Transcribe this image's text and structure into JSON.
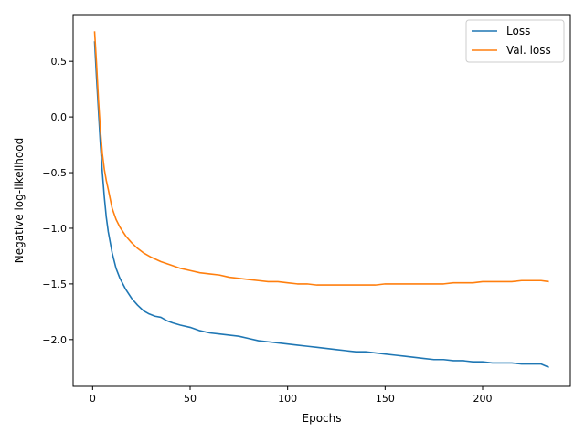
{
  "chart_data": {
    "type": "line",
    "title": "",
    "xlabel": "Epochs",
    "ylabel": "Negative log-likelihood",
    "xlim": [
      -10,
      245
    ],
    "ylim": [
      -2.42,
      0.92
    ],
    "xticks": [
      0,
      50,
      100,
      150,
      200
    ],
    "xtick_labels": [
      "0",
      "50",
      "100",
      "150",
      "200"
    ],
    "yticks": [
      0.5,
      0.0,
      -0.5,
      -1.0,
      -1.5,
      -2.0
    ],
    "ytick_labels": [
      "0.5",
      "0.0",
      "−0.5",
      "−1.0",
      "−1.5",
      "−2.0"
    ],
    "grid": false,
    "legend_position": "top-right",
    "series": [
      {
        "name": "Loss",
        "color": "#1f77b4",
        "x": [
          1,
          2,
          3,
          4,
          5,
          6,
          7,
          8,
          10,
          12,
          14,
          17,
          20,
          23,
          26,
          29,
          32,
          35,
          38,
          41,
          45,
          50,
          55,
          60,
          65,
          70,
          75,
          80,
          85,
          90,
          95,
          100,
          105,
          110,
          115,
          120,
          125,
          130,
          135,
          140,
          145,
          150,
          155,
          160,
          165,
          170,
          175,
          180,
          185,
          190,
          195,
          200,
          205,
          210,
          215,
          220,
          225,
          230,
          234
        ],
        "y": [
          0.68,
          0.35,
          0.05,
          -0.25,
          -0.5,
          -0.72,
          -0.9,
          -1.03,
          -1.22,
          -1.36,
          -1.45,
          -1.55,
          -1.63,
          -1.69,
          -1.74,
          -1.77,
          -1.79,
          -1.8,
          -1.83,
          -1.85,
          -1.87,
          -1.89,
          -1.92,
          -1.94,
          -1.95,
          -1.96,
          -1.97,
          -1.99,
          -2.01,
          -2.02,
          -2.03,
          -2.04,
          -2.05,
          -2.06,
          -2.07,
          -2.08,
          -2.09,
          -2.1,
          -2.11,
          -2.11,
          -2.12,
          -2.13,
          -2.14,
          -2.15,
          -2.16,
          -2.17,
          -2.18,
          -2.18,
          -2.19,
          -2.19,
          -2.2,
          -2.2,
          -2.21,
          -2.21,
          -2.21,
          -2.22,
          -2.22,
          -2.22,
          -2.25
        ]
      },
      {
        "name": "Val. loss",
        "color": "#ff7f0e",
        "x": [
          1,
          2,
          3,
          4,
          5,
          6,
          7,
          8,
          10,
          12,
          14,
          17,
          20,
          23,
          26,
          30,
          35,
          40,
          45,
          50,
          55,
          60,
          65,
          70,
          75,
          80,
          85,
          90,
          95,
          100,
          105,
          110,
          115,
          120,
          125,
          130,
          135,
          140,
          145,
          150,
          155,
          160,
          165,
          170,
          175,
          180,
          185,
          190,
          195,
          200,
          205,
          210,
          215,
          220,
          225,
          230,
          234
        ],
        "y": [
          0.77,
          0.48,
          0.15,
          -0.12,
          -0.33,
          -0.47,
          -0.57,
          -0.65,
          -0.82,
          -0.92,
          -0.99,
          -1.07,
          -1.13,
          -1.18,
          -1.22,
          -1.26,
          -1.3,
          -1.33,
          -1.36,
          -1.38,
          -1.4,
          -1.41,
          -1.42,
          -1.44,
          -1.45,
          -1.46,
          -1.47,
          -1.48,
          -1.48,
          -1.49,
          -1.5,
          -1.5,
          -1.51,
          -1.51,
          -1.51,
          -1.51,
          -1.51,
          -1.51,
          -1.51,
          -1.5,
          -1.5,
          -1.5,
          -1.5,
          -1.5,
          -1.5,
          -1.5,
          -1.49,
          -1.49,
          -1.49,
          -1.48,
          -1.48,
          -1.48,
          -1.48,
          -1.47,
          -1.47,
          -1.47,
          -1.48
        ]
      }
    ]
  }
}
